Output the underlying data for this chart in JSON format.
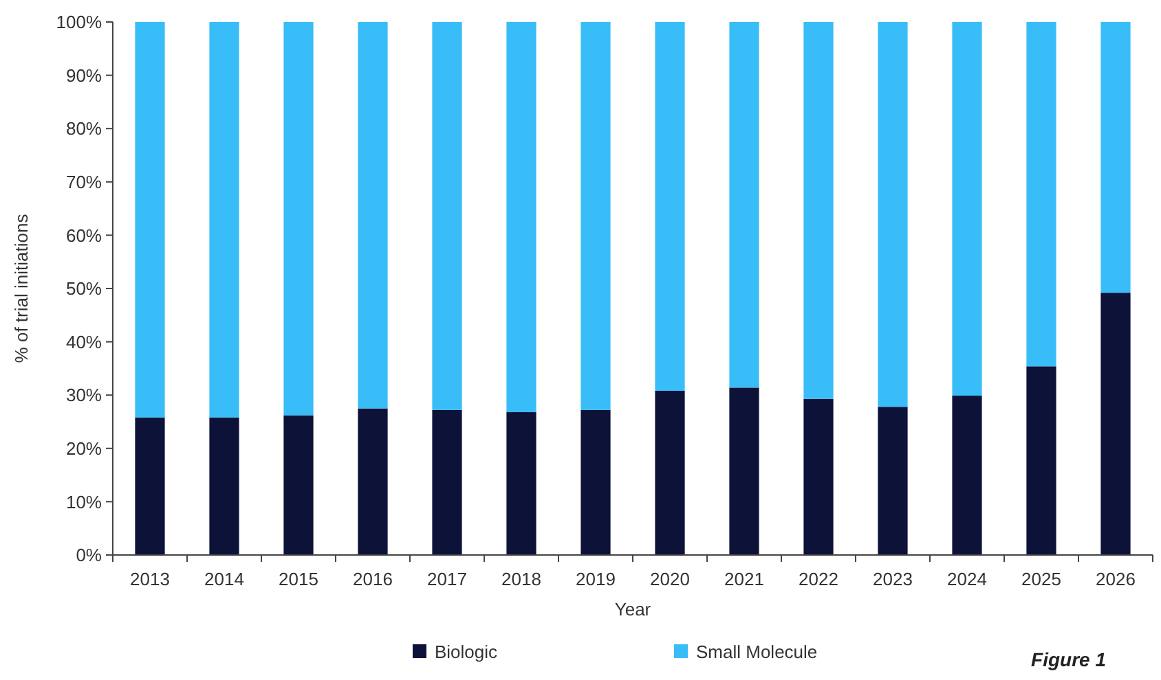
{
  "chart_data": {
    "type": "bar",
    "stacked": true,
    "xlabel": "Year",
    "ylabel": "% of trial initiations",
    "categories": [
      "2013",
      "2014",
      "2015",
      "2016",
      "2017",
      "2018",
      "2019",
      "2020",
      "2021",
      "2022",
      "2023",
      "2024",
      "2025",
      "2026"
    ],
    "series": [
      {
        "name": "Biologic",
        "color": "#0d1238",
        "values": [
          25.8,
          25.8,
          26.2,
          27.5,
          27.2,
          26.8,
          27.2,
          30.8,
          31.4,
          29.3,
          27.8,
          29.9,
          35.4,
          49.2
        ]
      },
      {
        "name": "Small Molecule",
        "color": "#38bdf8",
        "values": [
          74.2,
          74.2,
          73.8,
          72.5,
          72.8,
          73.2,
          72.8,
          69.2,
          68.6,
          70.7,
          72.2,
          70.1,
          64.6,
          50.8
        ]
      }
    ],
    "ylim": [
      0,
      100
    ],
    "yticks": [
      {
        "value": 0,
        "label": "0%"
      },
      {
        "value": 10,
        "label": "10%"
      },
      {
        "value": 20,
        "label": "20%"
      },
      {
        "value": 30,
        "label": "30%"
      },
      {
        "value": 40,
        "label": "40%"
      },
      {
        "value": 50,
        "label": "50%"
      },
      {
        "value": 60,
        "label": "60%"
      },
      {
        "value": 70,
        "label": "70%"
      },
      {
        "value": 80,
        "label": "80%"
      },
      {
        "value": 90,
        "label": "90%"
      },
      {
        "value": 100,
        "label": "100%"
      }
    ],
    "grid": false,
    "legend": "bottom",
    "annotations": [
      "Figure 1"
    ]
  }
}
